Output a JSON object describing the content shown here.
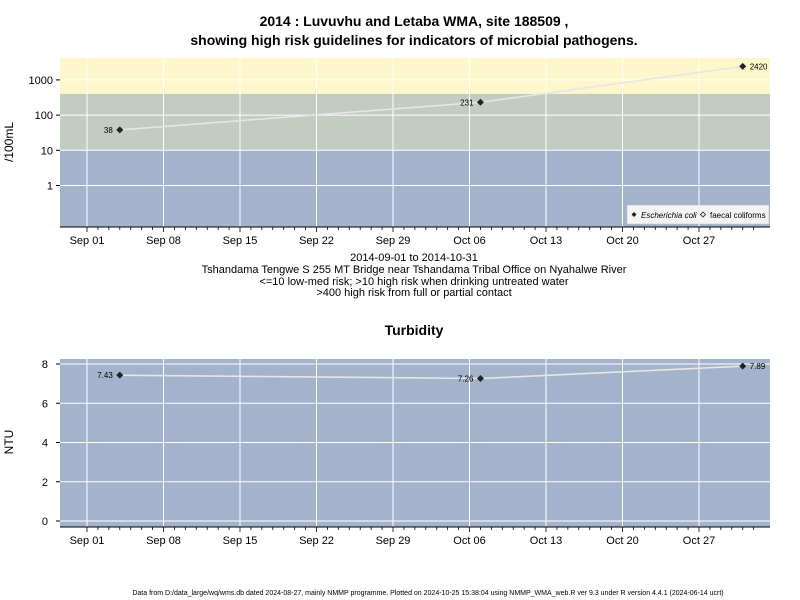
{
  "colors": {
    "high_risk_band": "#fdf7cb",
    "medium_band": "#c2ccc0",
    "low_band": "#a2b3cb",
    "panel_bg": "#a2b3cb",
    "grid": "#ffffff",
    "series_line": "#e6e6e6",
    "point": "#222222"
  },
  "chart_data": [
    {
      "type": "line",
      "title": "2014 : Luvuvhu and Letaba WMA, site 188509 ,",
      "subtitle": "showing high risk guidelines for indicators of microbial pathogens.",
      "ylabel": "/100mL",
      "yscale": "log",
      "yticks": [
        "1",
        "10",
        "100",
        "1000"
      ],
      "xticks": [
        "Sep 01",
        "Sep 08",
        "Sep 15",
        "Sep 22",
        "Sep 29",
        "Oct 06",
        "Oct 13",
        "Oct 20",
        "Oct 27"
      ],
      "risk_bands": [
        {
          "lower": 400,
          "upper": null
        },
        {
          "lower": 10,
          "upper": 400
        },
        {
          "lower": null,
          "upper": 10
        }
      ],
      "series": [
        {
          "name": "Escherichia coli",
          "points": [
            {
              "date": "2014-09-04",
              "value": 38,
              "label": "38"
            },
            {
              "date": "2014-10-07",
              "value": 231,
              "label": "231"
            },
            {
              "date": "2014-10-31",
              "value": 2420,
              "label": "2420"
            }
          ]
        }
      ],
      "legend": {
        "position": "bottom-right",
        "items": [
          "Escherichia coli",
          "faecal coliforms"
        ]
      },
      "notes": [
        "2014-09-01 to 2014-10-31",
        "Tshandama Tengwe S 255 MT Bridge near Tshandama Tribal Office on Nyahalwe River",
        "<=10 low-med risk; >10 high risk when drinking untreated water",
        ">400 high risk from full or partial contact"
      ]
    },
    {
      "type": "line",
      "title": "Turbidity",
      "ylabel": "NTU",
      "yticks": [
        "0",
        "2",
        "4",
        "6",
        "8"
      ],
      "ylim": [
        0,
        8
      ],
      "xticks": [
        "Sep 01",
        "Sep 08",
        "Sep 15",
        "Sep 22",
        "Sep 29",
        "Oct 06",
        "Oct 13",
        "Oct 20",
        "Oct 27"
      ],
      "series": [
        {
          "points": [
            {
              "date": "2014-09-04",
              "value": 7.43,
              "label": "7.43"
            },
            {
              "date": "2014-10-07",
              "value": 7.26,
              "label": "7.26"
            },
            {
              "date": "2014-10-31",
              "value": 7.89,
              "label": "7.89"
            }
          ]
        }
      ]
    }
  ],
  "footer": "Data from D:/data_large/wq/wms.db dated 2024-08-27, mainly NMMP programme. Plotted on 2024-10-25 15:38:04 using NMMP_WMA_web.R ver 9.3 under R version 4.4.1 (2024-06-14 ucrt)"
}
